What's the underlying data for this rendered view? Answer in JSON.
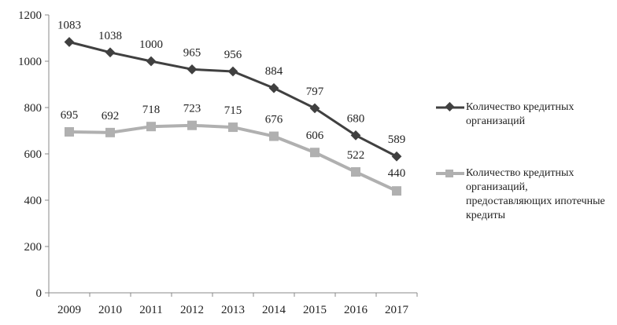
{
  "chart_data": {
    "type": "line",
    "title": "",
    "xlabel": "",
    "ylabel": "",
    "ylim": [
      0,
      1200
    ],
    "yticks": [
      0,
      200,
      400,
      600,
      800,
      1000,
      1200
    ],
    "categories": [
      "2009",
      "2010",
      "2011",
      "2012",
      "2013",
      "2014",
      "2015",
      "2016",
      "2017"
    ],
    "grid": false,
    "legend_position": "right",
    "series": [
      {
        "name": "Количество кредитных организаций",
        "values": [
          1083,
          1038,
          1000,
          965,
          956,
          884,
          797,
          680,
          589
        ],
        "color": "#404040",
        "marker": "diamond"
      },
      {
        "name": "Количество кредитных организаций, предоставляющих ипотечные кредиты",
        "values": [
          695,
          692,
          718,
          723,
          715,
          676,
          606,
          522,
          440
        ],
        "color": "#b0b0b0",
        "marker": "square"
      }
    ]
  }
}
